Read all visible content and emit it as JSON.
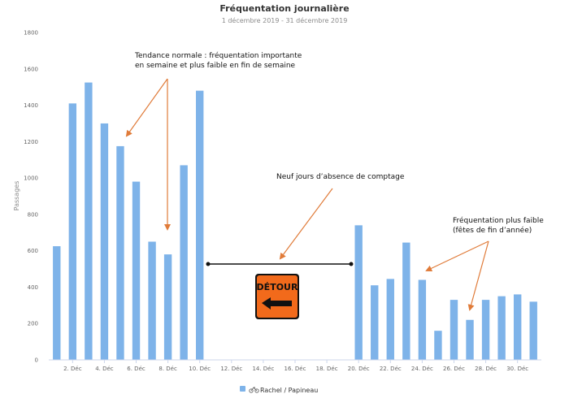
{
  "chart_data": {
    "type": "bar",
    "title": "Fréquentation journalière",
    "subtitle": "1 décembre 2019 - 31 décembre 2019",
    "ylabel": "Passages",
    "xlabel": "",
    "ylim": [
      0,
      1800
    ],
    "yticks": [
      0,
      200,
      400,
      600,
      800,
      1000,
      1200,
      1400,
      1600,
      1800
    ],
    "grid": false,
    "legend_position": "bottom-center",
    "colors": {
      "bar": "#7eb3e9",
      "annotation": "#e07b39",
      "sign": "#f26a1b",
      "detour_line": "#111111"
    },
    "categories": [
      "1. Déc",
      "2. Déc",
      "3. Déc",
      "4. Déc",
      "5. Déc",
      "6. Déc",
      "7. Déc",
      "8. Déc",
      "9. Déc",
      "10. Déc",
      "11. Déc",
      "12. Déc",
      "13. Déc",
      "14. Déc",
      "15. Déc",
      "16. Déc",
      "17. Déc",
      "18. Déc",
      "19. Déc",
      "20. Déc",
      "21. Déc",
      "22. Déc",
      "23. Déc",
      "24. Déc",
      "25. Déc",
      "26. Déc",
      "27. Déc",
      "28. Déc",
      "29. Déc",
      "30. Déc",
      "31. Déc"
    ],
    "tick_labels": [
      "2. Déc",
      "4. Déc",
      "6. Déc",
      "8. Déc",
      "10. Déc",
      "12. Déc",
      "14. Déc",
      "16. Déc",
      "18. Déc",
      "20. Déc",
      "22. Déc",
      "24. Déc",
      "26. Déc",
      "28. Déc",
      "30. Déc"
    ],
    "series": [
      {
        "name": "Rachel / Papineau",
        "values": [
          625,
          1410,
          1525,
          1300,
          1175,
          980,
          650,
          580,
          1070,
          1480,
          null,
          null,
          null,
          null,
          null,
          null,
          null,
          null,
          null,
          740,
          410,
          445,
          645,
          440,
          160,
          330,
          220,
          330,
          350,
          360,
          320
        ]
      }
    ],
    "annotations": [
      {
        "lines": [
          "Tendance normale : fréquentation importante",
          "en semaine et plus faible en fin de semaine"
        ]
      },
      {
        "lines": [
          "Neuf jours d’absence de comptage"
        ]
      },
      {
        "lines": [
          "Fréquentation plus faible",
          "(fêtes de fin d’année)"
        ]
      }
    ],
    "sign_text": "DÉTOUR"
  }
}
